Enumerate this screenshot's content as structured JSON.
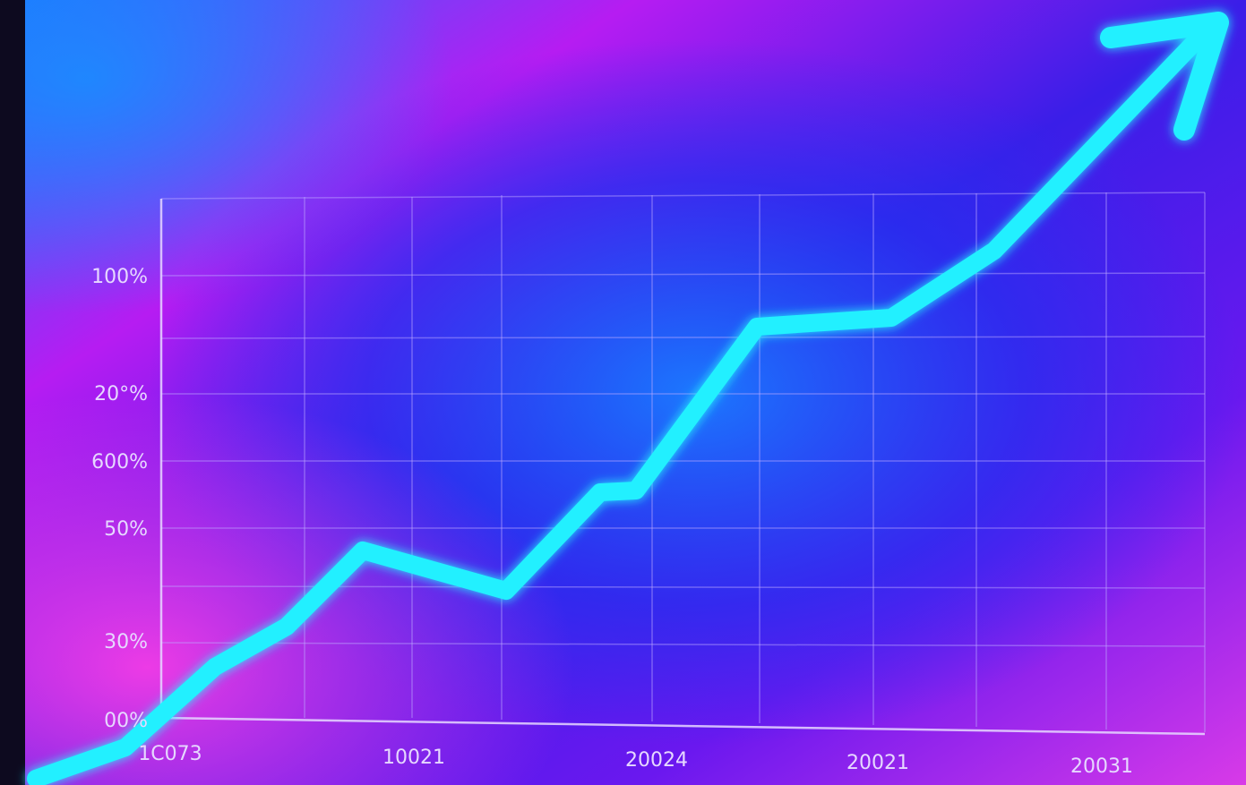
{
  "y_labels": [
    "100%",
    "20°%",
    "600%",
    "50%",
    "30%",
    "00%"
  ],
  "x_labels": [
    "1C073",
    "10021",
    "20024",
    "20021",
    "20031"
  ]
}
